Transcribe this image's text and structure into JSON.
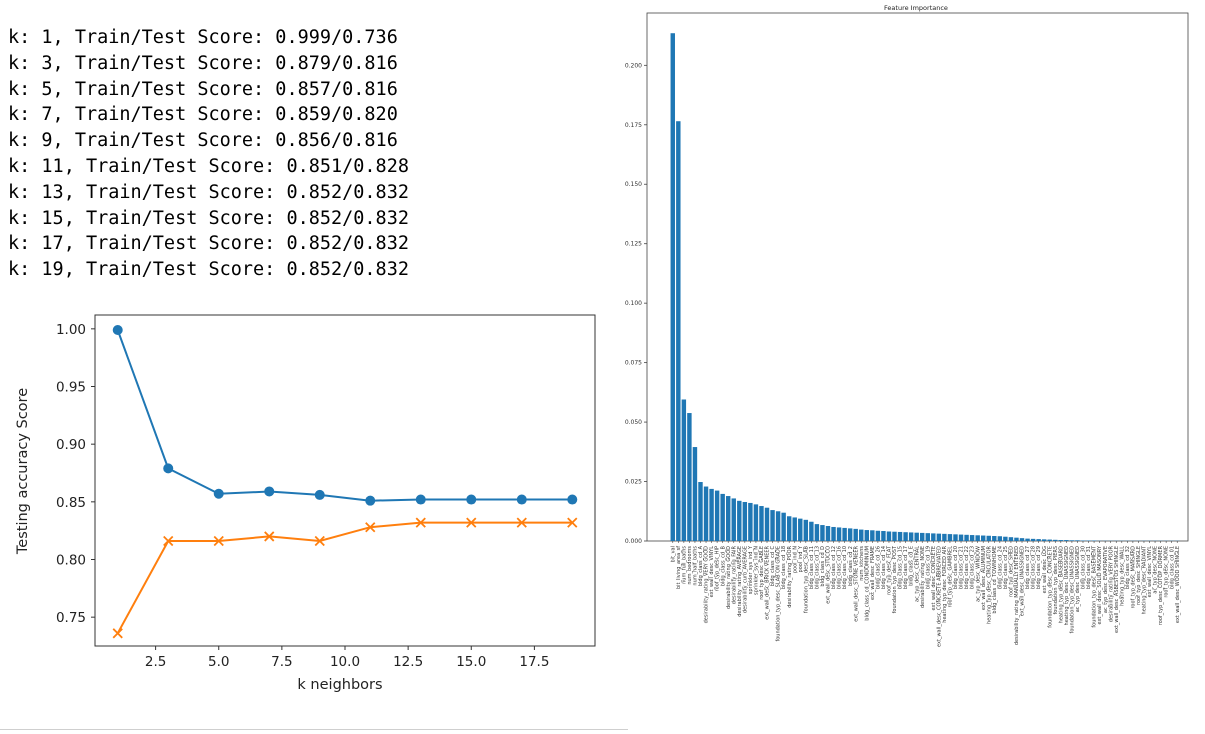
{
  "log_lines": [
    "k: 1, Train/Test Score: 0.999/0.736",
    "k: 3, Train/Test Score: 0.879/0.816",
    "k: 5, Train/Test Score: 0.857/0.816",
    "k: 7, Train/Test Score: 0.859/0.820",
    "k: 9, Train/Test Score: 0.856/0.816",
    "k: 11, Train/Test Score: 0.851/0.828",
    "k: 13, Train/Test Score: 0.852/0.832",
    "k: 15, Train/Test Score: 0.852/0.832",
    "k: 17, Train/Test Score: 0.852/0.832",
    "k: 19, Train/Test Score: 0.852/0.832"
  ],
  "chart_data": [
    {
      "type": "line",
      "title": "",
      "xlabel": "k neighbors",
      "ylabel": "Testing accuracy Score",
      "x": [
        1,
        3,
        5,
        7,
        9,
        11,
        13,
        15,
        17,
        19
      ],
      "xlim": [
        0.1,
        19.9
      ],
      "ylim": [
        0.725,
        1.012
      ],
      "xticks": [
        "2.5",
        "5.0",
        "7.5",
        "10.0",
        "12.5",
        "15.0",
        "17.5"
      ],
      "yticks": [
        "0.75",
        "0.80",
        "0.85",
        "0.90",
        "0.95",
        "1.00"
      ],
      "grid": false,
      "series": [
        {
          "color": "#1f77b4",
          "marker": "circle",
          "values": [
            0.999,
            0.879,
            0.857,
            0.859,
            0.856,
            0.851,
            0.852,
            0.852,
            0.852,
            0.852
          ]
        },
        {
          "color": "#ff7f0e",
          "marker": "x",
          "values": [
            0.736,
            0.816,
            0.816,
            0.82,
            0.816,
            0.828,
            0.832,
            0.832,
            0.832,
            0.832
          ]
        }
      ]
    },
    {
      "type": "bar",
      "title": "Feature Importance",
      "xlabel": "",
      "ylabel": "",
      "color": "#1f77b4",
      "ylim": [
        0,
        0.222
      ],
      "yticks": [
        "0.000",
        "0.025",
        "0.050",
        "0.075",
        "0.100",
        "0.125",
        "0.150",
        "0.175",
        "0.200"
      ],
      "categories": [
        "bit_val",
        "bit_living_area_sf",
        "num_full_baths",
        "num_bedrooms",
        "num_half_baths",
        "bldg_class_cd_A",
        "desirability_rating_VERY GOOD",
        "ext_wall_desc_VINYL",
        "roof_typ_desc_HIP",
        "bldg_class_cd_B",
        "desirability_rating_GOOD",
        "desirability_rating_FAIR",
        "desirability_rating_AVERAGE",
        "desirability_curb_AVERAGE",
        "sprinkler_sys_ind_Y",
        "sprinkler_sys_ind_N",
        "roof_typ_desc_GABLE",
        "ext_wall_desc_BRICK VENEER",
        "bldg_class_cd_C",
        "foundation_typ_desc_SLAB ON GRADE",
        "bldg_class_cd_18",
        "desirability_rating_POOR",
        "pool_ind_N",
        "pool_ind_Y",
        "foundation_typ_desc_SLAB",
        "bldg_class_cd_11",
        "bldg_class_cd_13",
        "bldg_class_cd_D",
        "ext_wall_desc_STUCCO",
        "bldg_class_cd_12",
        "bldg_class_cd_16",
        "bldg_class_cd_10",
        "bldg_class_cd_2",
        "ext_wall_desc_STONE VENEER",
        "num_kitchens",
        "bldg_class_cd_CONDOMINIUM",
        "ext_wall_desc_FRAME",
        "bldg_class_cd_26",
        "bldg_class_cd_14",
        "roof_typ_desc_FLAT",
        "foundation_typ_desc_POST",
        "bldg_class_cd_15",
        "bldg_class_cd_17",
        "bldg_class_cd_E",
        "ac_typ_desc_CENTRAL",
        "desirability_rating_NONE",
        "bldg_class_cd_19",
        "ext_wall_desc_CONCRETE",
        "ext_wall_desc_CONCRETE ABBREVIATED",
        "heating_typ_desc_FORCED AIR",
        "roof_typ_desc_GAMBREL",
        "bldg_class_cd_20",
        "bldg_class_cd_21",
        "bldg_class_cd_22",
        "bldg_class_cd_23",
        "ac_typ_desc_WINDOW",
        "ext_wall_desc_ALUMINUM",
        "heating_typ_desc_CIRCULATOR",
        "bldg_class_cd_TOWNHOME",
        "bldg_class_cd_24",
        "bldg_class_cd_25",
        "roof_typ_desc_SHED",
        "desirability_rating_MANUALLY ENTERED",
        "ext_wall_desc_UNASSIGNED",
        "bldg_class_cd_27",
        "bldg_class_cd_28",
        "bldg_class_cd_29",
        "ext_wall_desc_LOG",
        "foundation_typ_desc_CONCRETE",
        "foundation_typ_desc_PIERS",
        "heating_typ_desc_BASEBOARD",
        "heating_typ_desc_UNASSIGNED",
        "foundation_typ_desc_UNASSIGNED",
        "ac_typ_desc_UNASSIGNED",
        "bldg_class_cd_30",
        "bldg_class_cd_31",
        "foundation_typ_desc_BASEMENT",
        "ext_wall_desc_SOLID MASONRY",
        "ac_typ_desc_EVAPORATIVE",
        "desirability_rating_VERY POOR",
        "ext_wall_desc_ASBESTOS SHINGLE",
        "heating_typ_desc_WALL",
        "bldg_class_cd_32",
        "roof_typ_desc_MANSARD",
        "roof_typ_desc_SHINGLE",
        "heating_typ_desc_RADIANT",
        "ext_wall_desc_VINYL",
        "ac_typ_desc_NONE",
        "roof_typ_desc_COTOP_DORMER",
        "roof_typ_desc_NONE",
        "bldg_class_cd_01",
        "ext_wall_desc_WOOD SHINGLE"
      ],
      "values": [
        0.2135,
        0.1765,
        0.0595,
        0.0538,
        0.0395,
        0.0248,
        0.0229,
        0.0219,
        0.0212,
        0.0198,
        0.0189,
        0.0179,
        0.0169,
        0.0164,
        0.016,
        0.0154,
        0.0147,
        0.014,
        0.013,
        0.0125,
        0.0119,
        0.0104,
        0.0099,
        0.0094,
        0.0089,
        0.0081,
        0.0071,
        0.0067,
        0.0063,
        0.0059,
        0.0057,
        0.0055,
        0.0053,
        0.0051,
        0.0048,
        0.0046,
        0.0045,
        0.0043,
        0.0042,
        0.004,
        0.0039,
        0.0038,
        0.0037,
        0.0036,
        0.0035,
        0.0034,
        0.0033,
        0.0032,
        0.0031,
        0.003,
        0.0029,
        0.0028,
        0.0027,
        0.0026,
        0.0025,
        0.0024,
        0.0023,
        0.0022,
        0.0021,
        0.002,
        0.0018,
        0.0016,
        0.0014,
        0.0012,
        0.001,
        0.0009,
        0.0008,
        0.0007,
        0.0006,
        0.0005,
        0.0004,
        0.0004,
        0.0003,
        0.0003,
        0.0002,
        0.0002,
        0.0002,
        0.0001,
        0.0001,
        0.0001,
        0.0001,
        0.0001,
        0.0001,
        0.0001,
        0.0001,
        0.0001,
        0.0001,
        0.0001,
        0.0001,
        0.0001,
        0.0001,
        0.0001
      ]
    }
  ]
}
